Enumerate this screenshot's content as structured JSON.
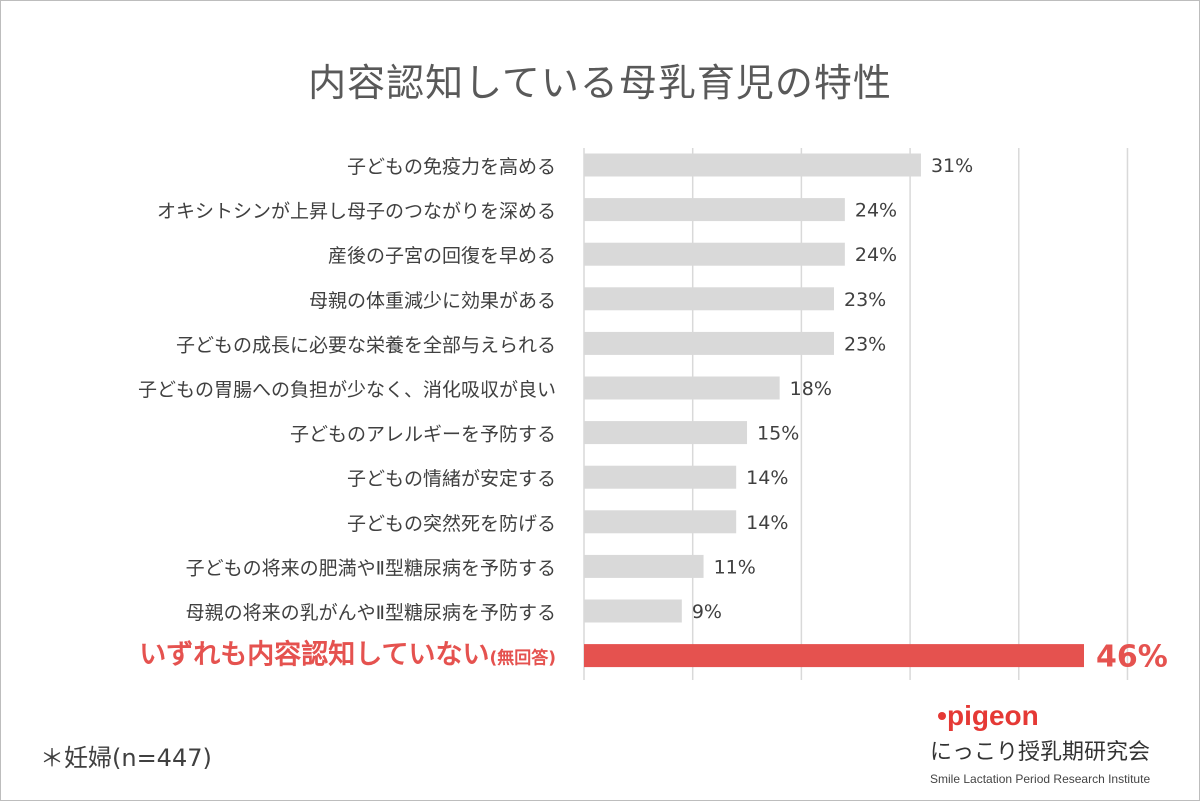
{
  "title": "内容認知している母乳育児の特性",
  "note": "＊妊婦(n=447)",
  "brand": {
    "logo_text": "pigeon",
    "name_ja": "にっこり授乳期研究会",
    "name_en": "Smile Lactation Period Research Institute"
  },
  "colors": {
    "bar": "#d9d9d9",
    "highlight": "#e5524f",
    "label": "#404040",
    "grid": "#d9d9d9"
  },
  "chart_data": {
    "type": "bar",
    "orientation": "horizontal",
    "title": "内容認知している母乳育児の特性",
    "categories": [
      "子どもの免疫力を高める",
      "オキシトシンが上昇し母子のつながりを深める",
      "産後の子宮の回復を早める",
      "母親の体重減少に効果がある",
      "子どもの成長に必要な栄養を全部与えられる",
      "子どもの胃腸への負担が少なく、消化吸収が良い",
      "子どものアレルギーを予防する",
      "子どもの情緒が安定する",
      "子どもの突然死を防げる",
      "子どもの将来の肥満やⅡ型糖尿病を予防する",
      "母親の将来の乳がんやⅡ型糖尿病を予防する",
      "いずれも内容認知していない"
    ],
    "label_suffixes": [
      "",
      "",
      "",
      "",
      "",
      "",
      "",
      "",
      "",
      "",
      "",
      "(無回答)"
    ],
    "values": [
      31,
      24,
      24,
      23,
      23,
      18,
      15,
      14,
      14,
      11,
      9,
      46
    ],
    "value_labels": [
      "31%",
      "24%",
      "24%",
      "23%",
      "23%",
      "18%",
      "15%",
      "14%",
      "14%",
      "11%",
      "9%",
      "46%"
    ],
    "highlight_index": 11,
    "xlim": [
      0,
      50
    ],
    "grid": true
  }
}
